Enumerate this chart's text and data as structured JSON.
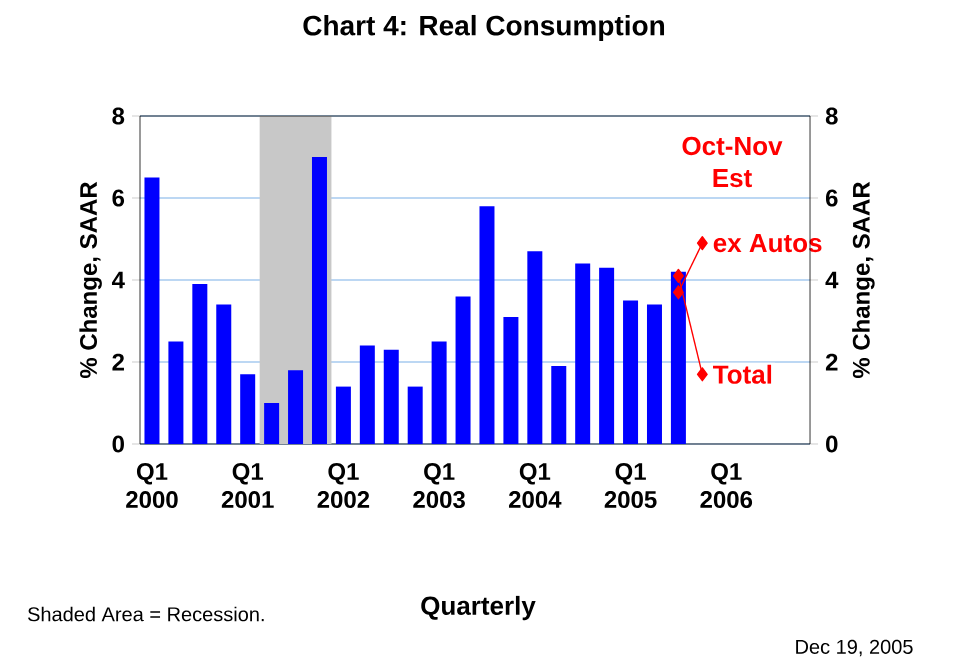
{
  "chart_data": {
    "type": "bar",
    "title": "Chart 4: Real Consumption",
    "xlabel": "Quarterly",
    "ylabel": "% Change, SAAR",
    "y2label": "% Change, SAAR",
    "categories": [
      "Q1 2000",
      null,
      null,
      null,
      "Q1 2001",
      null,
      null,
      null,
      "Q1 2002",
      null,
      null,
      null,
      "Q1 2003",
      null,
      null,
      null,
      "Q1 2004",
      null,
      null,
      null,
      "Q1 2005",
      null,
      null,
      null,
      "Q1 2006",
      null,
      null,
      null
    ],
    "series": [
      {
        "color": "#0000ff",
        "values": [
          6.5,
          2.5,
          3.9,
          3.4,
          1.7,
          1.0,
          1.8,
          7.0,
          1.4,
          2.4,
          2.3,
          1.4,
          2.5,
          3.6,
          5.8,
          3.1,
          4.7,
          1.9,
          4.4,
          4.3,
          3.5,
          3.4,
          4.2,
          null,
          null,
          null,
          null,
          null
        ]
      },
      {
        "type": "line",
        "name": "ex Autos",
        "color": "#ff0000",
        "marker": "diamond",
        "values": [
          null,
          null,
          null,
          null,
          null,
          null,
          null,
          null,
          null,
          null,
          null,
          null,
          null,
          null,
          null,
          null,
          null,
          null,
          null,
          null,
          null,
          null,
          3.7,
          4.9,
          null,
          null,
          null,
          null
        ]
      },
      {
        "type": "line",
        "name": "Total",
        "color": "#ff0000",
        "marker": "diamond",
        "values": [
          null,
          null,
          null,
          null,
          null,
          null,
          null,
          null,
          null,
          null,
          null,
          null,
          null,
          null,
          null,
          null,
          null,
          null,
          null,
          null,
          null,
          null,
          4.1,
          1.7,
          null,
          null,
          null,
          null
        ]
      }
    ],
    "ylim": [
      0,
      8
    ],
    "yticks": [
      0,
      2,
      4,
      6,
      8
    ],
    "y2lim": [
      0,
      8
    ],
    "y2ticks": [
      0,
      2,
      4,
      6,
      8
    ],
    "grid": "y",
    "annotations": [
      "Oct-Nov Est",
      "Shaded Area = Recession.",
      "Dec 19, 2005"
    ]
  }
}
